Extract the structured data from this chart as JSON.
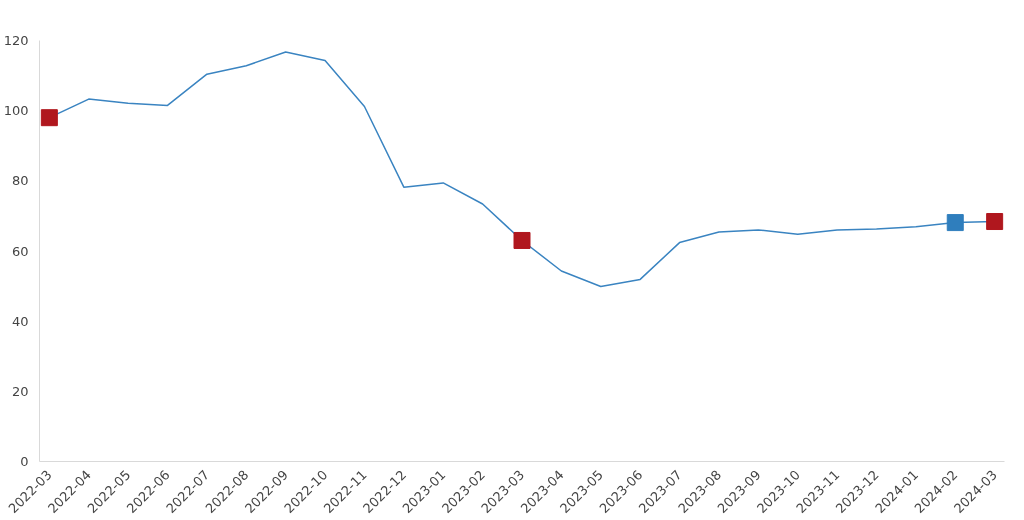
{
  "chart_data": {
    "type": "line",
    "categories": [
      "2022-03",
      "2022-04",
      "2022-05",
      "2022-06",
      "2022-07",
      "2022-08",
      "2022-09",
      "2022-10",
      "2022-11",
      "2022-12",
      "2023-01",
      "2023-02",
      "2023-03",
      "2023-04",
      "2023-05",
      "2023-06",
      "2023-07",
      "2023-08",
      "2023-09",
      "2023-10",
      "2023-11",
      "2023-12",
      "2024-01",
      "2024-02",
      "2024-03"
    ],
    "series": [
      {
        "color": "#3a84c1",
        "values": [
          98,
          103.3,
          102.1,
          101.5,
          110.4,
          112.8,
          116.7,
          114.3,
          101.2,
          78.2,
          79.4,
          73.4,
          63,
          54.3,
          49.9,
          51.9,
          62.4,
          65.4,
          66,
          64.8,
          66,
          66.3,
          66.9,
          68.1,
          68.4
        ]
      },
      {
        "type": "scatter",
        "marker": "square",
        "colors": [
          "#b0171e",
          null,
          null,
          null,
          null,
          null,
          null,
          null,
          null,
          null,
          null,
          null,
          "#b0171e",
          null,
          null,
          null,
          null,
          null,
          null,
          null,
          null,
          null,
          null,
          "#2f7ebd",
          "#b0171e"
        ],
        "values": [
          98,
          null,
          null,
          null,
          null,
          null,
          null,
          null,
          null,
          null,
          null,
          null,
          63,
          null,
          null,
          null,
          null,
          null,
          null,
          null,
          null,
          null,
          null,
          68.1,
          68.4
        ]
      }
    ],
    "ylim": [
      0,
      120
    ],
    "yticks": [
      0,
      20,
      40,
      60,
      80,
      100,
      120
    ],
    "grid": false
  }
}
